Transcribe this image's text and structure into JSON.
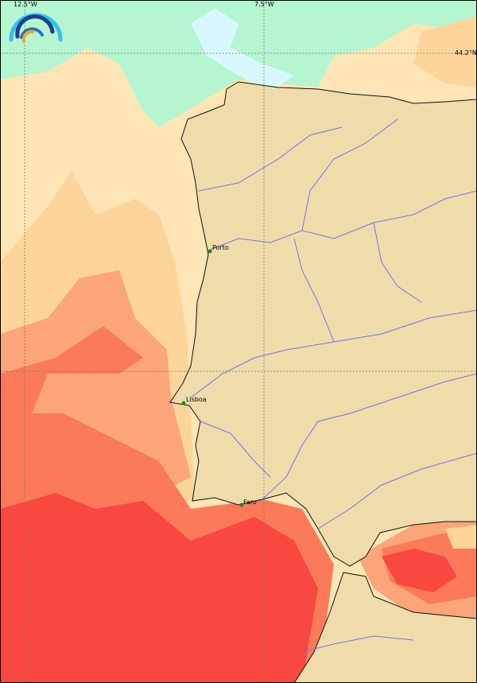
{
  "map": {
    "grid_labels": {
      "lon_left": "12.5°W",
      "lon_right": "7.5°W",
      "lat_top": "44.2°N"
    },
    "cities": [
      {
        "name": "Porto"
      },
      {
        "name": "Lisboa"
      },
      {
        "name": "Faro"
      }
    ],
    "colors": {
      "land": "#efdcaa",
      "river": "#7a6ee8",
      "city_marker": "#1a8a1a",
      "ocean_levels": [
        "#d8f8ff",
        "#b5f5d0",
        "#fde5b5",
        "#fdd59a",
        "#fca47a",
        "#fb7a5a",
        "#f84840"
      ]
    },
    "logo": "rainbow-arcs-logo"
  }
}
